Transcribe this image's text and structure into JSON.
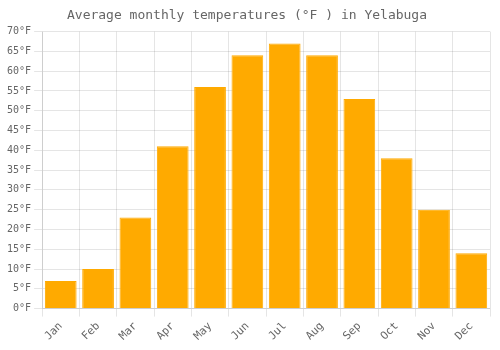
{
  "chart_data": {
    "type": "bar",
    "title": "Average monthly temperatures (°F ) in Yelabuga",
    "categories": [
      "Jan",
      "Feb",
      "Mar",
      "Apr",
      "May",
      "Jun",
      "Jul",
      "Aug",
      "Sep",
      "Oct",
      "Nov",
      "Dec"
    ],
    "values": [
      7,
      10,
      23,
      41,
      56,
      64,
      67,
      64,
      53,
      38,
      25,
      14
    ],
    "color": "#FFAA00",
    "ylim": [
      0,
      70
    ],
    "yticks": [
      {
        "value": 0,
        "label": "0°F"
      },
      {
        "value": 5,
        "label": "5°F"
      },
      {
        "value": 10,
        "label": "10°F"
      },
      {
        "value": 15,
        "label": "15°F"
      },
      {
        "value": 20,
        "label": "20°F"
      },
      {
        "value": 25,
        "label": "25°F"
      },
      {
        "value": 30,
        "label": "30°F"
      },
      {
        "value": 35,
        "label": "35°F"
      },
      {
        "value": 40,
        "label": "40°F"
      },
      {
        "value": 45,
        "label": "45°F"
      },
      {
        "value": 50,
        "label": "50°F"
      },
      {
        "value": 55,
        "label": "55°F"
      },
      {
        "value": 60,
        "label": "60°F"
      },
      {
        "value": 65,
        "label": "65°F"
      },
      {
        "value": 70,
        "label": "70°F"
      }
    ],
    "grid": true
  }
}
